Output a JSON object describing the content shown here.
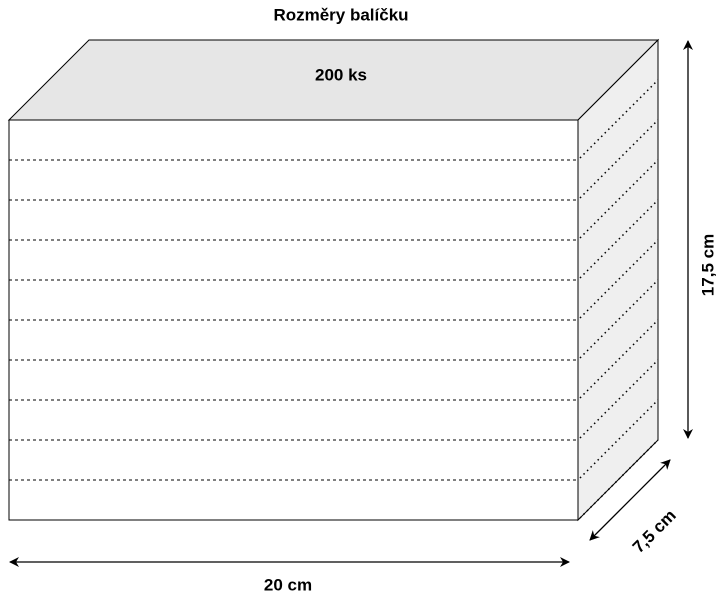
{
  "header": {
    "title": "Rozměry balíčku"
  },
  "box": {
    "count_label": "200 ks",
    "width_label": "20 cm",
    "height_label": "17,5 cm",
    "depth_label": "7,5 cm"
  }
}
